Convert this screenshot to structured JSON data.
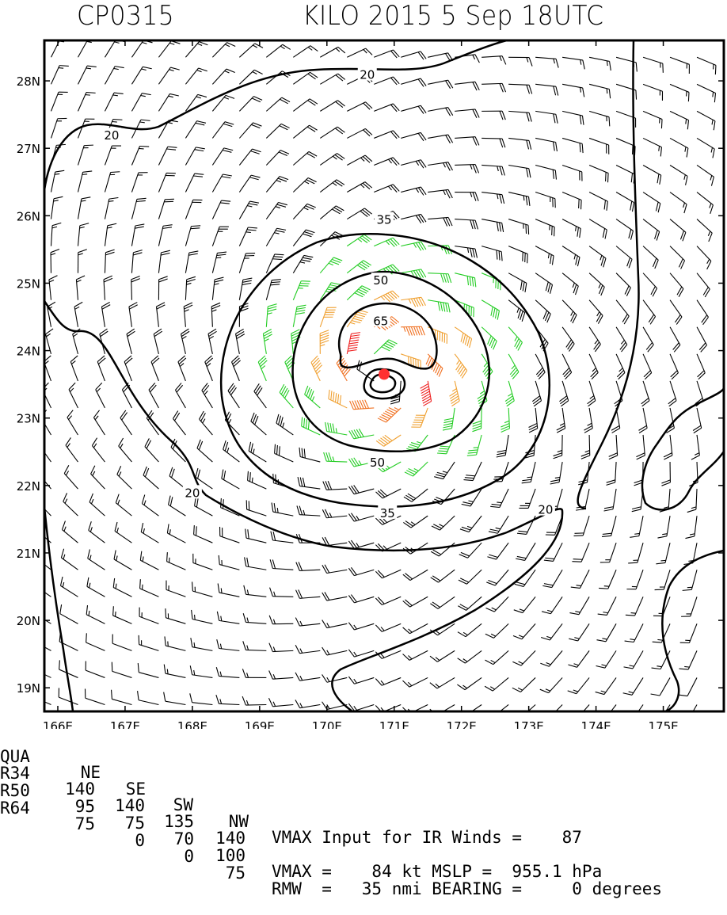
{
  "header": {
    "storm_id": "CP0315",
    "title": "KILO 2015   5 Sep  18UTC"
  },
  "chart_data": {
    "type": "wind-barb-map",
    "title": "KILO 2015 5 Sep 18UTC",
    "storm_id": "CP0315",
    "xlim": [
      165.8,
      175.9
    ],
    "ylim": [
      18.65,
      28.6
    ],
    "x_ticks": [
      "166E",
      "167E",
      "168E",
      "169E",
      "170E",
      "171E",
      "172E",
      "173E",
      "174E",
      "175E"
    ],
    "x_tick_values": [
      166,
      167,
      168,
      169,
      170,
      171,
      172,
      173,
      174,
      175
    ],
    "y_ticks": [
      "19N",
      "20N",
      "21N",
      "22N",
      "23N",
      "24N",
      "25N",
      "26N",
      "27N",
      "28N"
    ],
    "y_tick_values": [
      19,
      20,
      21,
      22,
      23,
      24,
      25,
      26,
      27,
      28
    ],
    "center": {
      "lon": 170.85,
      "lat": 23.65
    },
    "contour_levels_kt": [
      20,
      35,
      50,
      65
    ],
    "contour_labels": [
      {
        "text": "20",
        "lon": 170.6,
        "lat": 28.1
      },
      {
        "text": "20",
        "lon": 166.8,
        "lat": 27.2
      },
      {
        "text": "20",
        "lon": 168.0,
        "lat": 21.9
      },
      {
        "text": "20",
        "lon": 173.25,
        "lat": 21.65
      },
      {
        "text": "35",
        "lon": 170.85,
        "lat": 25.95
      },
      {
        "text": "35",
        "lon": 170.9,
        "lat": 21.6
      },
      {
        "text": "50",
        "lon": 170.8,
        "lat": 25.05
      },
      {
        "text": "50",
        "lon": 170.75,
        "lat": 22.35
      },
      {
        "text": "65",
        "lon": 170.8,
        "lat": 24.45
      }
    ],
    "color_bands": [
      {
        "range": "< 34 kt",
        "color": "#000000"
      },
      {
        "range": "34-49 kt",
        "color": "#22cc22"
      },
      {
        "range": "50-63 kt",
        "color": "#f0a030"
      },
      {
        "range": "64-79 kt",
        "color": "#f07020"
      },
      {
        "range": ">= 80 kt",
        "color": "#ee2020"
      }
    ],
    "vmax_kt": 84,
    "rmw_nmi": 35
  },
  "table": {
    "header_label": "QUA",
    "quadrants": [
      "NE",
      "SE",
      "SW",
      "NW"
    ],
    "rows": [
      {
        "label": "R34",
        "values": [
          "140",
          "140",
          "135",
          "140"
        ]
      },
      {
        "label": "R50",
        "values": [
          "95",
          "75",
          "70",
          "100"
        ]
      },
      {
        "label": "R64",
        "values": [
          "75",
          "0",
          "0",
          "75"
        ]
      }
    ],
    "line1": "VMAX Input for IR Winds =    87",
    "line3": "VMAX =    84 kt MSLP =  955.1 hPa",
    "line4": "RMW  =   35 nmi BEARING =     0 degrees"
  },
  "colors": {
    "black": "#000000",
    "green": "#22cc22",
    "light_orange": "#f0a030",
    "orange": "#f07020",
    "red": "#ee2020",
    "center": "#ff3030"
  }
}
